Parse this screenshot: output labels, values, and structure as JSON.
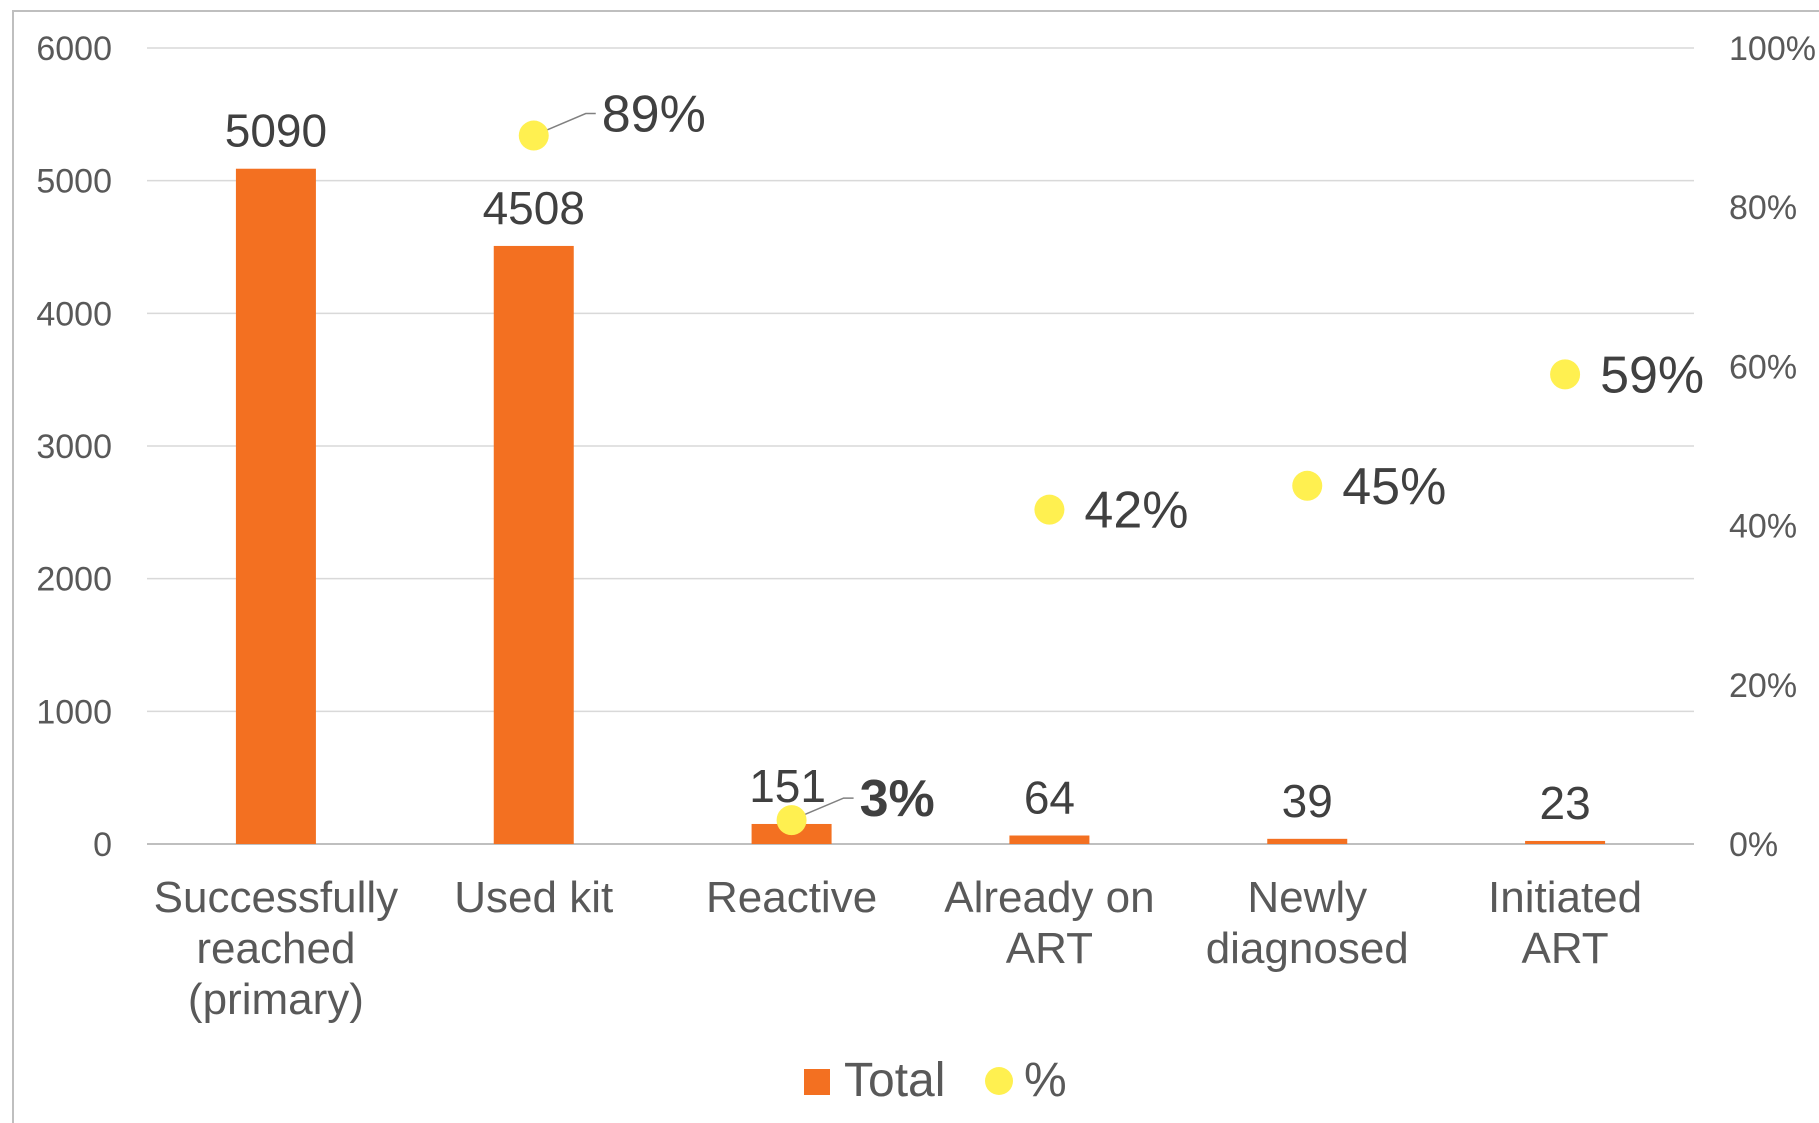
{
  "chart_data": {
    "type": "bar",
    "categories": [
      [
        "Successfully",
        "reached",
        "(primary)"
      ],
      [
        "Used kit"
      ],
      [
        "Reactive"
      ],
      [
        "Already on",
        "ART"
      ],
      [
        "Newly",
        "diagnosed"
      ],
      [
        "Initiated",
        "ART"
      ]
    ],
    "series": [
      {
        "name": "Total",
        "type": "bar",
        "axis": "left",
        "color": "#F37021",
        "values": [
          5090,
          4508,
          151,
          64,
          39,
          23
        ],
        "labels": [
          "5090",
          "4508",
          "151",
          "64",
          "39",
          "23"
        ]
      },
      {
        "name": "%",
        "type": "scatter",
        "axis": "right",
        "color": "#FFF050",
        "values": [
          null,
          89,
          3,
          42,
          45,
          59
        ],
        "labels": [
          "",
          "89%",
          "3%",
          "42%",
          "45%",
          "59%"
        ]
      }
    ],
    "y_left": {
      "min": 0,
      "max": 6000,
      "ticks": [
        "0",
        "1000",
        "2000",
        "3000",
        "4000",
        "5000",
        "6000"
      ]
    },
    "y_right": {
      "min": 0,
      "max": 100,
      "ticks": [
        "0%",
        "20%",
        "40%",
        "60%",
        "80%",
        "100%"
      ]
    },
    "grid": true,
    "legend": "bottom"
  }
}
